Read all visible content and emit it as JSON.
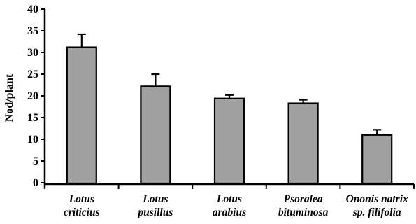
{
  "chart_data": {
    "type": "bar",
    "title": "",
    "xlabel": "",
    "ylabel": "Nod/plant",
    "ylim": [
      0,
      40
    ],
    "yticks": [
      0,
      5,
      10,
      15,
      20,
      25,
      30,
      35,
      40
    ],
    "categories": [
      [
        "Lotus",
        "criticius"
      ],
      [
        "Lotus",
        "pusillus"
      ],
      [
        "Lotus",
        "arabius"
      ],
      [
        "Psoralea",
        "bituminosa"
      ],
      [
        "Ononis natrix",
        "sp. filifolia"
      ]
    ],
    "values": [
      31.2,
      22.2,
      19.4,
      18.3,
      11.0
    ],
    "errors": [
      3.0,
      2.8,
      0.8,
      0.8,
      1.2
    ],
    "error_bars": "upper only",
    "bar_color": "#a0a0a0",
    "bar_edge_color": "#000000",
    "grid": false,
    "legend": "none"
  }
}
